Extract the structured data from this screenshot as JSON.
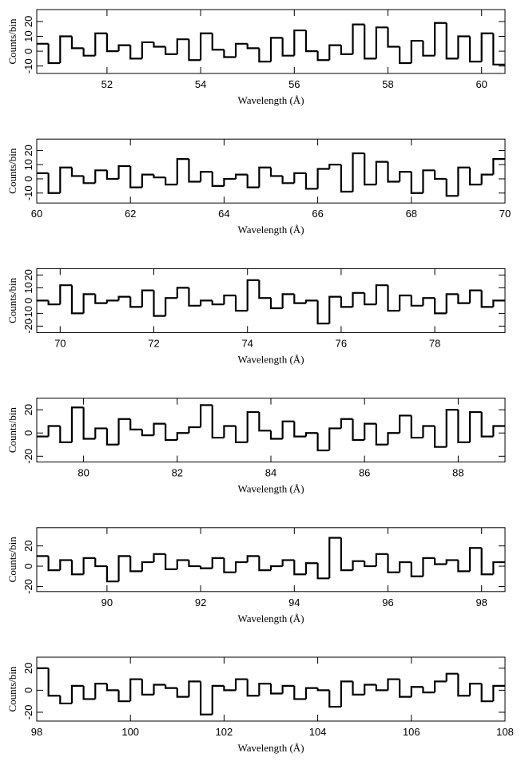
{
  "chart_data": [
    {
      "type": "line",
      "drawstyle": "steps-mid",
      "color": "#000000",
      "xlabel": "Wavelength (Å)",
      "ylabel": "Counts/bin",
      "x": [
        50.625,
        50.875,
        51.125,
        51.375,
        51.625,
        51.875,
        52.125,
        52.375,
        52.625,
        52.875,
        53.125,
        53.375,
        53.625,
        53.875,
        54.125,
        54.375,
        54.625,
        54.875,
        55.125,
        55.375,
        55.625,
        55.875,
        56.125,
        56.375,
        56.625,
        56.875,
        57.125,
        57.375,
        57.625,
        57.875,
        58.125,
        58.375,
        58.625,
        58.875,
        59.125,
        59.375,
        59.625,
        59.875,
        60.125,
        60.375
      ],
      "values": [
        5,
        -8,
        10,
        2,
        -3,
        12,
        0,
        4,
        -5,
        6,
        3,
        -2,
        8,
        -6,
        12,
        1,
        -4,
        5,
        2,
        -7,
        9,
        -3,
        14,
        0,
        -6,
        4,
        -2,
        18,
        -5,
        16,
        3,
        -8,
        7,
        -3,
        19,
        -5,
        10,
        -7,
        12,
        -9
      ],
      "xlim": [
        50.5,
        60.5
      ],
      "xticks": [
        52,
        54,
        56,
        58,
        60
      ],
      "ylim": [
        -15,
        28
      ],
      "yticks": [
        -10,
        0,
        10,
        20
      ]
    },
    {
      "type": "line",
      "drawstyle": "steps-mid",
      "color": "#000000",
      "xlabel": "Wavelength (Å)",
      "ylabel": "Counts/bin",
      "x": [
        60.125,
        60.375,
        60.625,
        60.875,
        61.125,
        61.375,
        61.625,
        61.875,
        62.125,
        62.375,
        62.625,
        62.875,
        63.125,
        63.375,
        63.625,
        63.875,
        64.125,
        64.375,
        64.625,
        64.875,
        65.125,
        65.375,
        65.625,
        65.875,
        66.125,
        66.375,
        66.625,
        66.875,
        67.125,
        67.375,
        67.625,
        67.875,
        68.125,
        68.375,
        68.625,
        68.875,
        69.125,
        69.375,
        69.625,
        69.875
      ],
      "values": [
        4,
        -10,
        8,
        2,
        -3,
        6,
        0,
        9,
        -6,
        3,
        1,
        -4,
        14,
        -2,
        5,
        -5,
        0,
        3,
        -6,
        8,
        2,
        -3,
        4,
        -7,
        7,
        10,
        -9,
        18,
        -4,
        12,
        -2,
        5,
        -10,
        6,
        0,
        -12,
        8,
        -4,
        3,
        14
      ],
      "xlim": [
        60,
        70
      ],
      "xticks": [
        60,
        62,
        64,
        66,
        68,
        70
      ],
      "ylim": [
        -17,
        28
      ],
      "yticks": [
        -10,
        0,
        10,
        20
      ]
    },
    {
      "type": "line",
      "drawstyle": "steps-mid",
      "color": "#000000",
      "xlabel": "Wavelength (Å)",
      "ylabel": "Counts/bin",
      "x": [
        69.625,
        69.875,
        70.125,
        70.375,
        70.625,
        70.875,
        71.125,
        71.375,
        71.625,
        71.875,
        72.125,
        72.375,
        72.625,
        72.875,
        73.125,
        73.375,
        73.625,
        73.875,
        74.125,
        74.375,
        74.625,
        74.875,
        75.125,
        75.375,
        75.625,
        75.875,
        76.125,
        76.375,
        76.625,
        76.875,
        77.125,
        77.375,
        77.625,
        77.875,
        78.125,
        78.375,
        78.625,
        78.875,
        79.125,
        79.375
      ],
      "values": [
        0,
        -3,
        12,
        -10,
        5,
        -2,
        0,
        3,
        -5,
        8,
        -12,
        2,
        10,
        -4,
        0,
        -3,
        4,
        -8,
        16,
        2,
        -6,
        5,
        -2,
        0,
        -18,
        3,
        -5,
        6,
        -3,
        12,
        -8,
        4,
        -4,
        2,
        -10,
        5,
        -2,
        8,
        -5,
        0
      ],
      "xlim": [
        69.5,
        79.5
      ],
      "xticks": [
        70,
        72,
        74,
        76,
        78
      ],
      "ylim": [
        -25,
        25
      ],
      "yticks": [
        -20,
        -10,
        0,
        10,
        20
      ]
    },
    {
      "type": "line",
      "drawstyle": "steps-mid",
      "color": "#000000",
      "xlabel": "Wavelength (Å)",
      "ylabel": "Counts/bin",
      "x": [
        79.125,
        79.375,
        79.625,
        79.875,
        80.125,
        80.375,
        80.625,
        80.875,
        81.125,
        81.375,
        81.625,
        81.875,
        82.125,
        82.375,
        82.625,
        82.875,
        83.125,
        83.375,
        83.625,
        83.875,
        84.125,
        84.375,
        84.625,
        84.875,
        85.125,
        85.375,
        85.625,
        85.875,
        86.125,
        86.375,
        86.625,
        86.875,
        87.125,
        87.375,
        87.625,
        87.875,
        88.125,
        88.375,
        88.625,
        88.875
      ],
      "values": [
        -3,
        6,
        -8,
        22,
        -5,
        4,
        -10,
        12,
        3,
        -2,
        8,
        -6,
        0,
        5,
        24,
        -4,
        6,
        -8,
        18,
        2,
        -5,
        10,
        -3,
        0,
        -15,
        4,
        12,
        -6,
        8,
        -10,
        0,
        15,
        -4,
        6,
        -12,
        20,
        -8,
        18,
        -3,
        6
      ],
      "xlim": [
        79,
        89
      ],
      "xticks": [
        80,
        82,
        84,
        86,
        88
      ],
      "ylim": [
        -25,
        30
      ],
      "yticks": [
        -20,
        0,
        20
      ]
    },
    {
      "type": "line",
      "drawstyle": "steps-mid",
      "color": "#000000",
      "xlabel": "Wavelength (Å)",
      "ylabel": "Counts/bin",
      "x": [
        88.625,
        88.875,
        89.125,
        89.375,
        89.625,
        89.875,
        90.125,
        90.375,
        90.625,
        90.875,
        91.125,
        91.375,
        91.625,
        91.875,
        92.125,
        92.375,
        92.625,
        92.875,
        93.125,
        93.375,
        93.625,
        93.875,
        94.125,
        94.375,
        94.625,
        94.875,
        95.125,
        95.375,
        95.625,
        95.875,
        96.125,
        96.375,
        96.625,
        96.875,
        97.125,
        97.375,
        97.625,
        97.875,
        98.125,
        98.375
      ],
      "values": [
        10,
        -4,
        6,
        -8,
        8,
        0,
        -15,
        10,
        -5,
        4,
        12,
        -3,
        6,
        0,
        -2,
        8,
        -6,
        4,
        10,
        -4,
        0,
        6,
        -8,
        3,
        -12,
        28,
        -4,
        5,
        0,
        12,
        -6,
        4,
        -10,
        8,
        2,
        6,
        -5,
        18,
        -8,
        4
      ],
      "xlim": [
        88.5,
        98.5
      ],
      "xticks": [
        90,
        92,
        94,
        96,
        98
      ],
      "ylim": [
        -25,
        38
      ],
      "yticks": [
        -20,
        0,
        20
      ]
    },
    {
      "type": "line",
      "drawstyle": "steps-mid",
      "color": "#000000",
      "xlabel": "Wavelength (Å)",
      "ylabel": "Counts/bin",
      "x": [
        98.125,
        98.375,
        98.625,
        98.875,
        99.125,
        99.375,
        99.625,
        99.875,
        100.125,
        100.375,
        100.625,
        100.875,
        101.125,
        101.375,
        101.625,
        101.875,
        102.125,
        102.375,
        102.625,
        102.875,
        103.125,
        103.375,
        103.625,
        103.875,
        104.125,
        104.375,
        104.625,
        104.875,
        105.125,
        105.375,
        105.625,
        105.875,
        106.125,
        106.375,
        106.625,
        106.875,
        107.125,
        107.375,
        107.625,
        107.875
      ],
      "values": [
        20,
        -5,
        -12,
        4,
        -8,
        6,
        0,
        -10,
        10,
        -4,
        5,
        2,
        -6,
        8,
        -22,
        4,
        0,
        10,
        -5,
        6,
        -3,
        4,
        -8,
        2,
        0,
        -15,
        8,
        -4,
        5,
        0,
        10,
        -6,
        3,
        -2,
        8,
        15,
        -5,
        6,
        -10,
        4
      ],
      "xlim": [
        98,
        108
      ],
      "xticks": [
        98,
        100,
        102,
        104,
        106,
        108
      ],
      "ylim": [
        -28,
        30
      ],
      "yticks": [
        -20,
        0,
        20
      ]
    }
  ]
}
